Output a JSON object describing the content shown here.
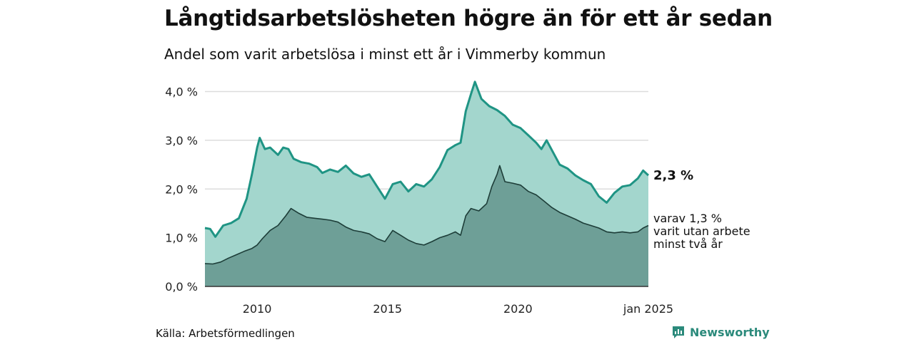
{
  "title": "Långtidsarbetslösheten högre än för ett år sedan",
  "subtitle": "Andel som varit arbetslösa i minst ett år i Vimmerby kommun",
  "source": "Källa: Arbetsförmedlingen",
  "brand": "Newsworthy",
  "colors": {
    "upper_fill": "#a3d6cd",
    "upper_line": "#1f9484",
    "lower_fill": "#6e9f97",
    "lower_line": "#1d3d38",
    "grid": "#dddddd"
  },
  "chart_data": {
    "type": "area",
    "x_unit": "year",
    "xlim": [
      2008.0,
      2025.0
    ],
    "ylim": [
      0,
      4.3
    ],
    "y_ticks": [
      0,
      1,
      2,
      3,
      4
    ],
    "y_tick_labels": [
      "0,0 %",
      "1,0 %",
      "2,0 %",
      "3,0 %",
      "4,0 %"
    ],
    "x_ticks": [
      2010,
      2015,
      2020,
      2025
    ],
    "x_tick_labels": [
      "2010",
      "2015",
      "2020",
      "jan 2025"
    ],
    "grid": true,
    "series": [
      {
        "label_value": "2,3 %",
        "points": [
          [
            2008.0,
            1.2
          ],
          [
            2008.2,
            1.18
          ],
          [
            2008.4,
            1.02
          ],
          [
            2008.7,
            1.25
          ],
          [
            2009.0,
            1.3
          ],
          [
            2009.3,
            1.4
          ],
          [
            2009.6,
            1.8
          ],
          [
            2009.8,
            2.3
          ],
          [
            2010.0,
            2.85
          ],
          [
            2010.1,
            3.05
          ],
          [
            2010.3,
            2.82
          ],
          [
            2010.5,
            2.85
          ],
          [
            2010.8,
            2.7
          ],
          [
            2011.0,
            2.85
          ],
          [
            2011.2,
            2.82
          ],
          [
            2011.4,
            2.62
          ],
          [
            2011.7,
            2.55
          ],
          [
            2012.0,
            2.52
          ],
          [
            2012.3,
            2.45
          ],
          [
            2012.5,
            2.33
          ],
          [
            2012.8,
            2.4
          ],
          [
            2013.1,
            2.35
          ],
          [
            2013.4,
            2.48
          ],
          [
            2013.7,
            2.32
          ],
          [
            2014.0,
            2.25
          ],
          [
            2014.3,
            2.3
          ],
          [
            2014.6,
            2.05
          ],
          [
            2014.9,
            1.8
          ],
          [
            2015.2,
            2.1
          ],
          [
            2015.5,
            2.15
          ],
          [
            2015.8,
            1.95
          ],
          [
            2016.1,
            2.1
          ],
          [
            2016.4,
            2.05
          ],
          [
            2016.7,
            2.2
          ],
          [
            2017.0,
            2.45
          ],
          [
            2017.3,
            2.8
          ],
          [
            2017.6,
            2.9
          ],
          [
            2017.8,
            2.95
          ],
          [
            2018.0,
            3.6
          ],
          [
            2018.2,
            3.95
          ],
          [
            2018.35,
            4.2
          ],
          [
            2018.6,
            3.85
          ],
          [
            2018.9,
            3.7
          ],
          [
            2019.2,
            3.62
          ],
          [
            2019.5,
            3.5
          ],
          [
            2019.8,
            3.32
          ],
          [
            2020.1,
            3.25
          ],
          [
            2020.4,
            3.1
          ],
          [
            2020.7,
            2.95
          ],
          [
            2020.9,
            2.82
          ],
          [
            2021.1,
            3.0
          ],
          [
            2021.3,
            2.8
          ],
          [
            2021.6,
            2.5
          ],
          [
            2021.9,
            2.42
          ],
          [
            2022.2,
            2.28
          ],
          [
            2022.5,
            2.18
          ],
          [
            2022.8,
            2.1
          ],
          [
            2023.1,
            1.85
          ],
          [
            2023.4,
            1.72
          ],
          [
            2023.7,
            1.92
          ],
          [
            2024.0,
            2.05
          ],
          [
            2024.3,
            2.08
          ],
          [
            2024.6,
            2.22
          ],
          [
            2024.8,
            2.38
          ],
          [
            2025.0,
            2.28
          ]
        ]
      },
      {
        "name": "varav 1,3 % varit utan arbete minst två år",
        "label_lines": [
          "varav 1,3 %",
          "varit utan arbete",
          "minst två år"
        ],
        "points": [
          [
            2008.0,
            0.47
          ],
          [
            2008.3,
            0.46
          ],
          [
            2008.6,
            0.5
          ],
          [
            2008.9,
            0.58
          ],
          [
            2009.2,
            0.65
          ],
          [
            2009.5,
            0.72
          ],
          [
            2009.8,
            0.78
          ],
          [
            2010.0,
            0.85
          ],
          [
            2010.2,
            0.98
          ],
          [
            2010.5,
            1.15
          ],
          [
            2010.8,
            1.25
          ],
          [
            2011.1,
            1.45
          ],
          [
            2011.3,
            1.6
          ],
          [
            2011.6,
            1.5
          ],
          [
            2011.9,
            1.42
          ],
          [
            2012.2,
            1.4
          ],
          [
            2012.5,
            1.38
          ],
          [
            2012.8,
            1.36
          ],
          [
            2013.1,
            1.32
          ],
          [
            2013.4,
            1.22
          ],
          [
            2013.7,
            1.15
          ],
          [
            2014.0,
            1.12
          ],
          [
            2014.3,
            1.08
          ],
          [
            2014.6,
            0.98
          ],
          [
            2014.9,
            0.92
          ],
          [
            2015.2,
            1.15
          ],
          [
            2015.5,
            1.05
          ],
          [
            2015.8,
            0.95
          ],
          [
            2016.1,
            0.88
          ],
          [
            2016.4,
            0.85
          ],
          [
            2016.7,
            0.92
          ],
          [
            2017.0,
            1.0
          ],
          [
            2017.3,
            1.05
          ],
          [
            2017.6,
            1.12
          ],
          [
            2017.8,
            1.05
          ],
          [
            2018.0,
            1.45
          ],
          [
            2018.2,
            1.6
          ],
          [
            2018.5,
            1.55
          ],
          [
            2018.8,
            1.7
          ],
          [
            2019.0,
            2.05
          ],
          [
            2019.2,
            2.3
          ],
          [
            2019.3,
            2.48
          ],
          [
            2019.5,
            2.15
          ],
          [
            2019.8,
            2.12
          ],
          [
            2020.1,
            2.08
          ],
          [
            2020.4,
            1.95
          ],
          [
            2020.7,
            1.88
          ],
          [
            2021.0,
            1.75
          ],
          [
            2021.3,
            1.62
          ],
          [
            2021.6,
            1.52
          ],
          [
            2021.9,
            1.45
          ],
          [
            2022.2,
            1.38
          ],
          [
            2022.5,
            1.3
          ],
          [
            2022.8,
            1.25
          ],
          [
            2023.1,
            1.2
          ],
          [
            2023.4,
            1.12
          ],
          [
            2023.7,
            1.1
          ],
          [
            2024.0,
            1.12
          ],
          [
            2024.3,
            1.1
          ],
          [
            2024.6,
            1.12
          ],
          [
            2024.8,
            1.2
          ],
          [
            2025.0,
            1.25
          ]
        ]
      }
    ]
  }
}
